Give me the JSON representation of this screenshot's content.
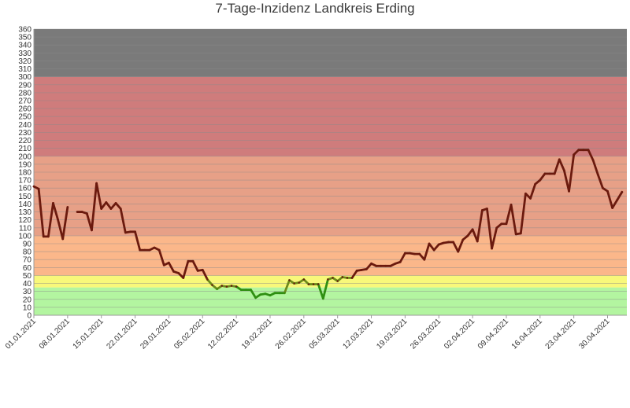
{
  "chart_data": {
    "type": "line",
    "title": "7-Tage-Inzidenz Landkreis Erding",
    "xlabel": "",
    "ylabel": "",
    "ylim": [
      0,
      360
    ],
    "y_ticks": [
      0,
      10,
      20,
      30,
      40,
      50,
      60,
      70,
      80,
      90,
      100,
      110,
      120,
      130,
      140,
      150,
      160,
      170,
      180,
      190,
      200,
      210,
      220,
      230,
      240,
      250,
      260,
      270,
      280,
      290,
      300,
      310,
      320,
      330,
      340,
      350,
      360
    ],
    "x_start": "2021-01-01",
    "x_end": "2021-05-04",
    "x_tick_labels": [
      "01.01.2021",
      "08.01.2021",
      "15.01.2021",
      "22.01.2021",
      "29.01.2021",
      "05.02.2021",
      "12.02.2021",
      "19.02.2021",
      "26.02.2021",
      "05.03.2021",
      "12.03.2021",
      "19.03.2021",
      "26.03.2021",
      "02.04.2021",
      "09.04.2021",
      "16.04.2021",
      "23.04.2021",
      "30.04.2021"
    ],
    "bands": [
      {
        "from": 0,
        "to": 35,
        "color": "#b3f5a0"
      },
      {
        "from": 35,
        "to": 50,
        "color": "#f8f87a"
      },
      {
        "from": 50,
        "to": 100,
        "color": "#fbb78a"
      },
      {
        "from": 100,
        "to": 200,
        "color": "#e7a087"
      },
      {
        "from": 200,
        "to": 300,
        "color": "#cf7c7c"
      },
      {
        "from": 300,
        "to": 360,
        "color": "#7a7a7a"
      }
    ],
    "line_colors": {
      "high": "#6b1a0e",
      "low": "#2f8f12"
    },
    "grid": true,
    "series": [
      {
        "name": "",
        "points": [
          [
            "2021-01-01",
            162
          ],
          [
            "2021-01-02",
            159
          ],
          [
            "2021-01-03",
            99
          ],
          [
            "2021-01-04",
            99
          ],
          [
            "2021-01-05",
            141
          ],
          [
            "2021-01-06",
            120
          ],
          [
            "2021-01-07",
            96
          ],
          [
            "2021-01-08",
            136
          ],
          [
            "2021-01-10",
            130
          ],
          [
            "2021-01-11",
            130
          ],
          [
            "2021-01-12",
            128
          ],
          [
            "2021-01-13",
            107
          ],
          [
            "2021-01-14",
            166
          ],
          [
            "2021-01-15",
            134
          ],
          [
            "2021-01-16",
            142
          ],
          [
            "2021-01-17",
            134
          ],
          [
            "2021-01-18",
            141
          ],
          [
            "2021-01-19",
            134
          ],
          [
            "2021-01-20",
            104
          ],
          [
            "2021-01-21",
            105
          ],
          [
            "2021-01-22",
            105
          ],
          [
            "2021-01-23",
            82
          ],
          [
            "2021-01-24",
            82
          ],
          [
            "2021-01-25",
            82
          ],
          [
            "2021-01-26",
            85
          ],
          [
            "2021-01-27",
            82
          ],
          [
            "2021-01-28",
            63
          ],
          [
            "2021-01-29",
            66
          ],
          [
            "2021-01-30",
            55
          ],
          [
            "2021-01-31",
            53
          ],
          [
            "2021-02-01",
            47
          ],
          [
            "2021-02-02",
            68
          ],
          [
            "2021-02-03",
            68
          ],
          [
            "2021-02-04",
            56
          ],
          [
            "2021-02-05",
            57
          ],
          [
            "2021-02-06",
            45
          ],
          [
            "2021-02-07",
            38
          ],
          [
            "2021-02-08",
            33
          ],
          [
            "2021-02-09",
            37
          ],
          [
            "2021-02-10",
            36
          ],
          [
            "2021-02-11",
            37
          ],
          [
            "2021-02-12",
            36
          ],
          [
            "2021-02-13",
            32
          ],
          [
            "2021-02-14",
            32
          ],
          [
            "2021-02-15",
            32
          ],
          [
            "2021-02-16",
            22
          ],
          [
            "2021-02-17",
            26
          ],
          [
            "2021-02-18",
            27
          ],
          [
            "2021-02-19",
            25
          ],
          [
            "2021-02-20",
            28
          ],
          [
            "2021-02-21",
            28
          ],
          [
            "2021-02-22",
            28
          ],
          [
            "2021-02-23",
            44
          ],
          [
            "2021-02-24",
            40
          ],
          [
            "2021-02-25",
            41
          ],
          [
            "2021-02-26",
            45
          ],
          [
            "2021-02-27",
            39
          ],
          [
            "2021-02-28",
            39
          ],
          [
            "2021-03-01",
            39
          ],
          [
            "2021-03-02",
            21
          ],
          [
            "2021-03-03",
            45
          ],
          [
            "2021-03-04",
            47
          ],
          [
            "2021-03-05",
            43
          ],
          [
            "2021-03-06",
            48
          ],
          [
            "2021-03-07",
            47
          ],
          [
            "2021-03-08",
            47
          ],
          [
            "2021-03-09",
            56
          ],
          [
            "2021-03-10",
            57
          ],
          [
            "2021-03-11",
            58
          ],
          [
            "2021-03-12",
            65
          ],
          [
            "2021-03-13",
            62
          ],
          [
            "2021-03-14",
            62
          ],
          [
            "2021-03-15",
            62
          ],
          [
            "2021-03-16",
            62
          ],
          [
            "2021-03-17",
            65
          ],
          [
            "2021-03-18",
            67
          ],
          [
            "2021-03-19",
            78
          ],
          [
            "2021-03-20",
            78
          ],
          [
            "2021-03-21",
            77
          ],
          [
            "2021-03-22",
            77
          ],
          [
            "2021-03-23",
            70
          ],
          [
            "2021-03-24",
            90
          ],
          [
            "2021-03-25",
            82
          ],
          [
            "2021-03-26",
            89
          ],
          [
            "2021-03-27",
            91
          ],
          [
            "2021-03-28",
            92
          ],
          [
            "2021-03-29",
            92
          ],
          [
            "2021-03-30",
            80
          ],
          [
            "2021-03-31",
            95
          ],
          [
            "2021-04-01",
            100
          ],
          [
            "2021-04-02",
            108
          ],
          [
            "2021-04-03",
            93
          ],
          [
            "2021-04-04",
            132
          ],
          [
            "2021-04-05",
            134
          ],
          [
            "2021-04-06",
            84
          ],
          [
            "2021-04-07",
            110
          ],
          [
            "2021-04-08",
            115
          ],
          [
            "2021-04-09",
            115
          ],
          [
            "2021-04-10",
            139
          ],
          [
            "2021-04-11",
            102
          ],
          [
            "2021-04-12",
            103
          ],
          [
            "2021-04-13",
            153
          ],
          [
            "2021-04-14",
            147
          ],
          [
            "2021-04-15",
            165
          ],
          [
            "2021-04-16",
            170
          ],
          [
            "2021-04-17",
            178
          ],
          [
            "2021-04-18",
            178
          ],
          [
            "2021-04-19",
            178
          ],
          [
            "2021-04-20",
            196
          ],
          [
            "2021-04-21",
            182
          ],
          [
            "2021-04-22",
            156
          ],
          [
            "2021-04-23",
            202
          ],
          [
            "2021-04-24",
            208
          ],
          [
            "2021-04-25",
            208
          ],
          [
            "2021-04-26",
            208
          ],
          [
            "2021-04-27",
            195
          ],
          [
            "2021-04-28",
            177
          ],
          [
            "2021-04-29",
            160
          ],
          [
            "2021-04-30",
            156
          ],
          [
            "2021-05-01",
            135
          ],
          [
            "2021-05-02",
            145
          ],
          [
            "2021-05-03",
            155
          ]
        ]
      }
    ]
  }
}
